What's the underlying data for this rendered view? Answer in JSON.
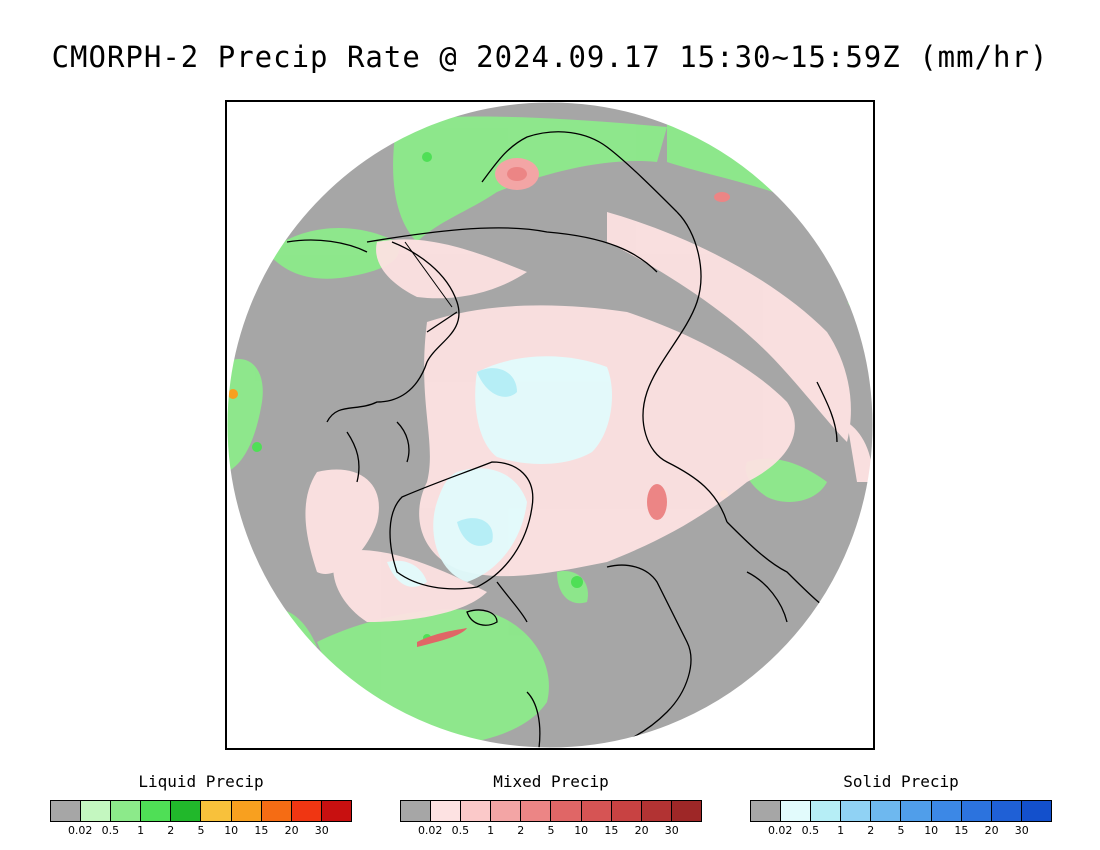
{
  "title": "CMORPH-2 Precip Rate @ 2024.09.17 15:30~15:59Z (mm/hr)",
  "map": {
    "projection": "north polar stereographic",
    "background_color": "#a6a6a6",
    "coastline_color": "#000000"
  },
  "legends": [
    {
      "id": "liquid",
      "title": "Liquid Precip",
      "colors": [
        "#a6a6a6",
        "#c4f7c0",
        "#8cea8a",
        "#4fdf56",
        "#21b82b",
        "#f8c13b",
        "#f8a01f",
        "#f56c14",
        "#f03612",
        "#c81010"
      ],
      "ticks": [
        "0.02",
        "0.5",
        "1",
        "2",
        "5",
        "10",
        "15",
        "20",
        "30"
      ]
    },
    {
      "id": "mixed",
      "title": "Mixed Precip",
      "colors": [
        "#a6a6a6",
        "#fde2e2",
        "#fbc9c9",
        "#f3a5a5",
        "#ec8585",
        "#e06666",
        "#d65454",
        "#c84242",
        "#b23333",
        "#9e2727"
      ],
      "ticks": [
        "0.02",
        "0.5",
        "1",
        "2",
        "5",
        "10",
        "15",
        "20",
        "30"
      ]
    },
    {
      "id": "solid",
      "title": "Solid Precip",
      "colors": [
        "#a6a6a6",
        "#e2fbfc",
        "#b6eef6",
        "#90d2f4",
        "#6eb8ef",
        "#509eea",
        "#3c88e6",
        "#2c73de",
        "#1f60d6",
        "#1350cc"
      ],
      "ticks": [
        "0.02",
        "0.5",
        "1",
        "2",
        "5",
        "10",
        "15",
        "20",
        "30"
      ]
    }
  ]
}
